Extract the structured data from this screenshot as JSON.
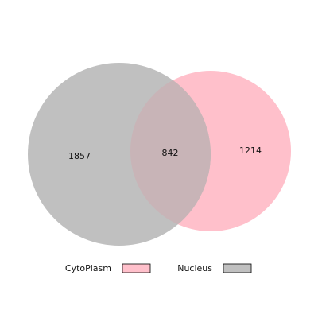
{
  "colors": {
    "cytoplasm_fill": "#ffc0cb",
    "nucleus_fill": "#c0c0c0",
    "overlap_fill": "#c8b4b7",
    "swatch_stroke": "#000000"
  },
  "venn": {
    "sets": [
      {
        "key": "nucleus",
        "count": "1857"
      },
      {
        "key": "overlap",
        "count": "842"
      },
      {
        "key": "cytoplasm",
        "count": "1214"
      }
    ]
  },
  "legend": {
    "cytoplasm_label": "CytoPlasm",
    "nucleus_label": "Nucleus"
  }
}
